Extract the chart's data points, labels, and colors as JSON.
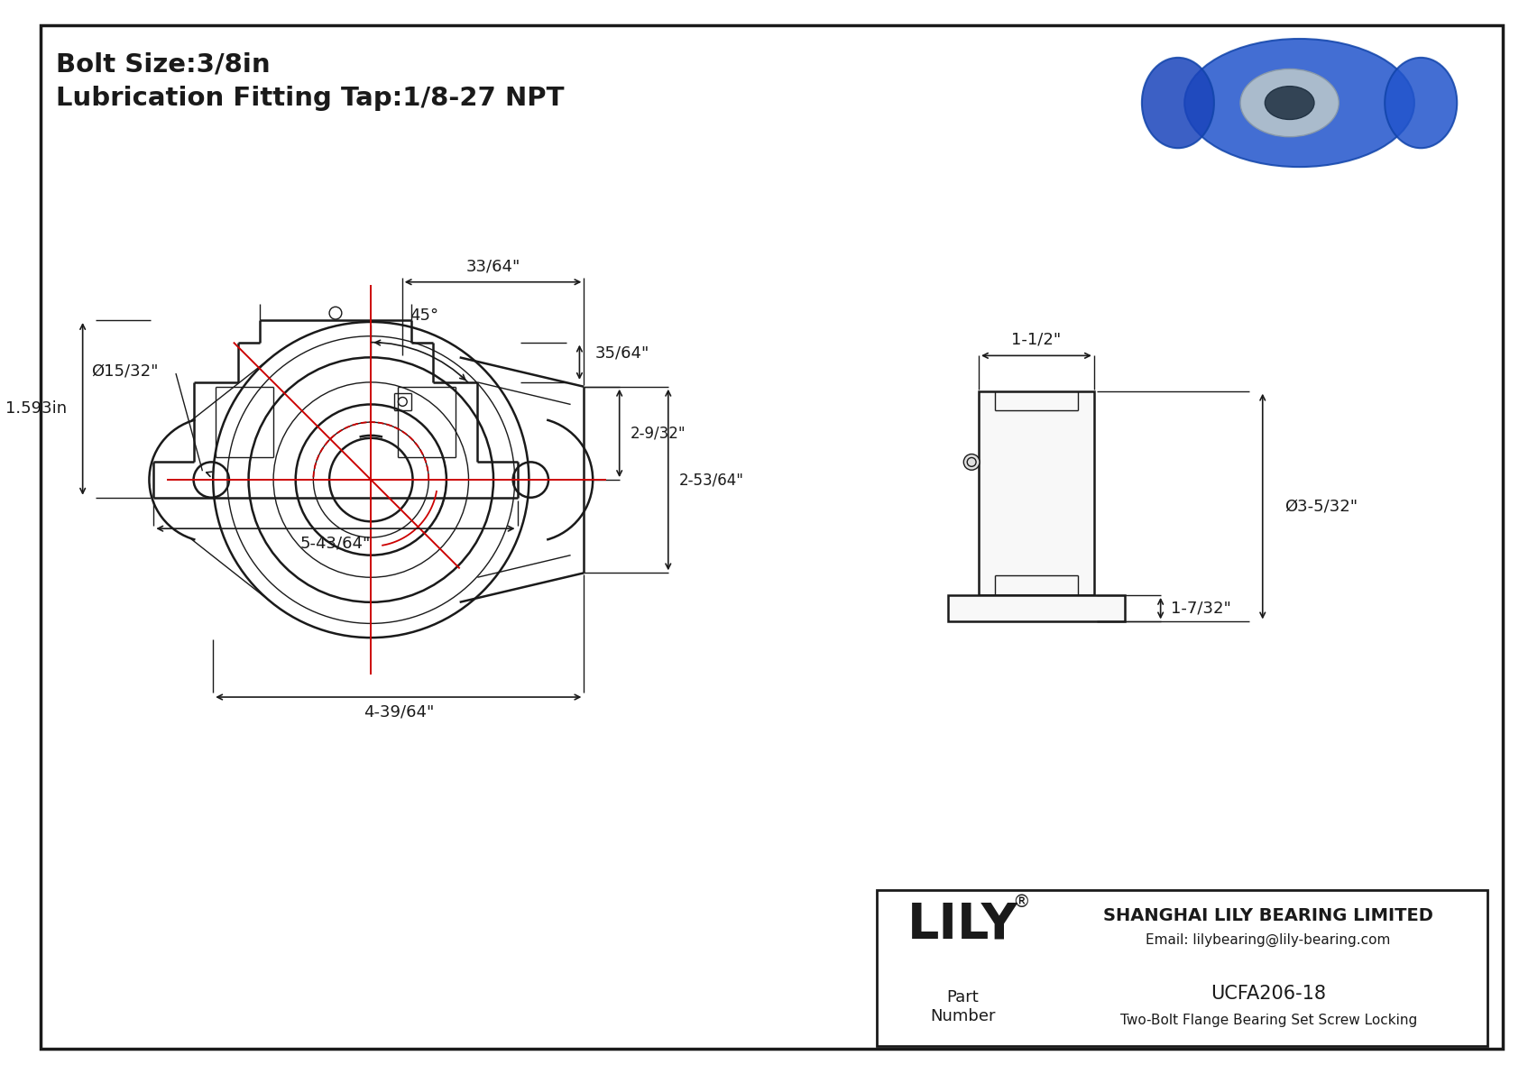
{
  "title_line1": "Bolt Size:3/8in",
  "title_line2": "Lubrication Fitting Tap:1/8-27 NPT",
  "part_number": "UCFA206-18",
  "part_description": "Two-Bolt Flange Bearing Set Screw Locking",
  "company_name": "SHANGHAI LILY BEARING LIMITED",
  "company_email": "Email: lilybearing@lily-bearing.com",
  "logo_text": "LILY",
  "logo_registered": "®",
  "part_label": "Part\nNumber",
  "bg_color": "#ffffff",
  "line_color": "#1a1a1a",
  "red_color": "#cc0000",
  "dims": {
    "bolt_hole_dia": "Ø15/32\"",
    "angle": "45°",
    "width_top": "33/64\"",
    "total_width": "4-39/64\"",
    "height1": "2-9/32\"",
    "height2": "2-53/64\"",
    "side_width": "1-1/2\"",
    "side_height1": "1-7/32\"",
    "side_dia": "Ø3-5/32\"",
    "bottom_height": "35/64\"",
    "bottom_width": "5-43/64\"",
    "side_dim": "1.593in"
  }
}
